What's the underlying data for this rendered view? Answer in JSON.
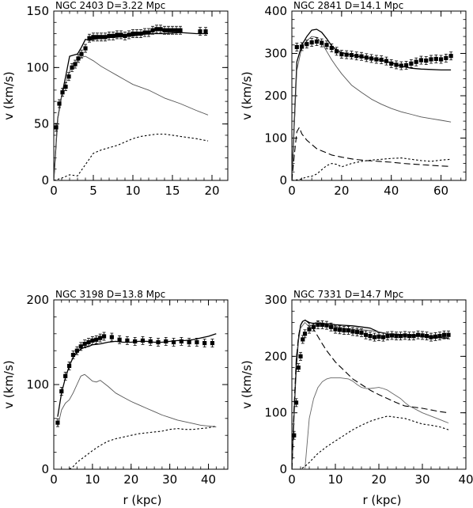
{
  "figure": {
    "x_axis_label": "r (kpc)",
    "y_axis_label": "v (km/s)"
  },
  "chart_data": [
    {
      "type": "line",
      "title": "NGC 2403   D=3.22 Mpc",
      "xlabel": "",
      "ylabel": "v (km/s)",
      "xlim": [
        0,
        22
      ],
      "ylim": [
        0,
        150
      ],
      "xticks": [
        0,
        5,
        10,
        15,
        20
      ],
      "yticks": [
        0,
        50,
        100,
        150
      ],
      "points": {
        "x": [
          0.3,
          0.7,
          1.1,
          1.5,
          1.9,
          2.3,
          2.7,
          3.1,
          3.5,
          4.0,
          4.5,
          5.0,
          5.5,
          6.0,
          6.5,
          7.0,
          7.5,
          8.0,
          8.5,
          9.0,
          9.5,
          10.0,
          10.5,
          11.0,
          11.5,
          12.0,
          12.5,
          13.0,
          13.5,
          14.0,
          14.5,
          15.0,
          15.5,
          16.0,
          18.5,
          19.2
        ],
        "y": [
          47,
          68,
          78,
          83,
          92,
          100,
          103,
          108,
          112,
          117,
          126,
          127,
          127,
          127,
          127,
          128,
          128,
          129,
          129,
          128,
          129,
          130,
          130,
          130,
          131,
          131,
          133,
          134,
          134,
          133,
          133,
          133,
          133,
          133,
          132,
          132
        ]
      },
      "series": [
        {
          "style": "solid",
          "x": [
            0,
            0.5,
            1,
            1.5,
            2,
            2.5,
            3,
            3.5,
            4,
            4.5,
            5,
            6,
            8,
            10,
            12,
            14,
            16,
            18,
            19.5
          ],
          "y": [
            0,
            55,
            75,
            92,
            110,
            111,
            112,
            118,
            125,
            124,
            125,
            126,
            127,
            128,
            130,
            130,
            131,
            130,
            130
          ]
        },
        {
          "style": "dotted",
          "x": [
            0,
            0.5,
            1,
            2,
            3,
            3.5,
            4,
            5,
            6,
            7,
            8,
            9,
            10,
            12,
            14,
            16,
            18,
            19.5
          ],
          "y": [
            0,
            55,
            75,
            97,
            106,
            109,
            110,
            106,
            101,
            97,
            93,
            89,
            85,
            80,
            73,
            68,
            62,
            58
          ]
        },
        {
          "style": "dashed",
          "x": [
            0,
            1,
            2,
            3,
            4,
            5,
            6,
            7,
            8,
            9,
            10,
            11,
            12,
            13,
            14,
            15,
            16,
            17,
            18,
            19.5
          ],
          "y": [
            0,
            2,
            5,
            4,
            14,
            24,
            27,
            29,
            31,
            34,
            37,
            39,
            40,
            41,
            41,
            40,
            39,
            38,
            37,
            35
          ]
        }
      ]
    },
    {
      "type": "line",
      "title": "NGC 2841   D=14.1 Mpc",
      "xlabel": "",
      "ylabel": "v (km/s)",
      "xlim": [
        0,
        70
      ],
      "ylim": [
        0,
        400
      ],
      "xticks": [
        0,
        20,
        40,
        60
      ],
      "yticks": [
        0,
        100,
        200,
        300,
        400
      ],
      "points": {
        "x": [
          2,
          4,
          6,
          8,
          10,
          12,
          14,
          16,
          18,
          20,
          22,
          24,
          26,
          28,
          30,
          32,
          34,
          36,
          38,
          40,
          42,
          44,
          46,
          48,
          50,
          52,
          54,
          56,
          58,
          60,
          62,
          64
        ],
        "y": [
          315,
          316,
          322,
          326,
          328,
          325,
          320,
          313,
          305,
          298,
          297,
          296,
          294,
          293,
          290,
          288,
          286,
          285,
          282,
          276,
          273,
          271,
          272,
          276,
          280,
          284,
          283,
          286,
          287,
          286,
          289,
          294
        ]
      },
      "series": [
        {
          "style": "solid",
          "x": [
            0,
            2,
            4,
            6,
            8,
            10,
            12,
            14,
            16,
            18,
            20,
            24,
            28,
            32,
            36,
            40,
            44,
            48,
            52,
            56,
            60,
            64
          ],
          "y": [
            0,
            280,
            320,
            340,
            355,
            357,
            350,
            335,
            318,
            308,
            302,
            296,
            292,
            288,
            284,
            278,
            270,
            265,
            263,
            262,
            261,
            261
          ]
        },
        {
          "style": "dotted",
          "x": [
            0,
            2,
            4,
            6,
            8,
            10,
            12,
            14,
            16,
            18,
            20,
            24,
            28,
            32,
            36,
            40,
            44,
            48,
            52,
            56,
            60,
            64
          ],
          "y": [
            0,
            260,
            315,
            330,
            340,
            338,
            325,
            305,
            285,
            268,
            252,
            225,
            208,
            192,
            180,
            170,
            162,
            156,
            150,
            146,
            142,
            138
          ]
        },
        {
          "style": "longdash",
          "x": [
            0,
            1,
            2,
            3,
            4,
            6,
            8,
            10,
            12,
            14,
            16,
            20,
            25,
            30,
            35,
            40,
            45,
            50,
            55,
            60,
            64
          ],
          "y": [
            0,
            60,
            115,
            125,
            110,
            95,
            85,
            75,
            70,
            65,
            60,
            55,
            50,
            47,
            45,
            43,
            40,
            38,
            36,
            34,
            33
          ]
        },
        {
          "style": "dashed",
          "x": [
            0,
            3,
            6,
            8,
            10,
            12,
            14,
            16,
            18,
            20,
            24,
            28,
            32,
            36,
            40,
            44,
            48,
            52,
            56,
            60,
            64
          ],
          "y": [
            0,
            2,
            8,
            10,
            15,
            25,
            35,
            40,
            38,
            32,
            40,
            45,
            48,
            50,
            52,
            53,
            50,
            47,
            45,
            48,
            50
          ]
        }
      ]
    },
    {
      "type": "line",
      "title": "NGC 3198   D=13.8 Mpc",
      "xlabel": "r (kpc)",
      "ylabel": "v (km/s)",
      "xlim": [
        0,
        45
      ],
      "ylim": [
        0,
        200
      ],
      "xticks": [
        0,
        10,
        20,
        30,
        40
      ],
      "yticks": [
        0,
        100,
        200
      ],
      "points": {
        "x": [
          1,
          2,
          3,
          4,
          5,
          6,
          7,
          8,
          9,
          10,
          11,
          12,
          13,
          15,
          17,
          19,
          21,
          23,
          25,
          27,
          29,
          31,
          33,
          35,
          37,
          39,
          41
        ],
        "y": [
          55,
          92,
          110,
          122,
          135,
          140,
          145,
          148,
          150,
          152,
          153,
          155,
          157,
          156,
          153,
          152,
          151,
          152,
          151,
          150,
          151,
          150,
          151,
          150,
          150,
          149,
          149
        ]
      },
      "series": [
        {
          "style": "solid",
          "x": [
            1,
            2,
            3,
            4,
            5,
            6,
            7,
            8,
            9,
            10,
            12,
            14,
            16,
            18,
            20,
            22,
            24,
            26,
            28,
            30,
            32,
            34,
            36,
            38,
            40,
            42
          ],
          "y": [
            62,
            90,
            108,
            122,
            132,
            138,
            142,
            144,
            145,
            147,
            148,
            150,
            151,
            150,
            150,
            151,
            151,
            150,
            150,
            151,
            152,
            152,
            153,
            155,
            157,
            160
          ]
        },
        {
          "style": "dotted",
          "x": [
            1,
            2,
            3,
            4,
            5,
            6,
            7,
            8,
            9,
            10,
            11,
            12,
            14,
            16,
            18,
            20,
            22,
            24,
            26,
            28,
            30,
            32,
            34,
            36,
            38,
            40,
            42
          ],
          "y": [
            50,
            70,
            78,
            82,
            90,
            100,
            110,
            112,
            108,
            104,
            103,
            105,
            98,
            90,
            85,
            80,
            76,
            72,
            68,
            64,
            61,
            58,
            56,
            54,
            52,
            51,
            50
          ]
        },
        {
          "style": "dashed",
          "x": [
            2,
            4,
            5,
            6,
            8,
            10,
            12,
            14,
            16,
            18,
            20,
            22,
            24,
            26,
            28,
            30,
            32,
            34,
            36,
            38,
            40,
            42
          ],
          "y": [
            0,
            0,
            3,
            8,
            15,
            22,
            28,
            33,
            36,
            38,
            40,
            42,
            43,
            44,
            45,
            47,
            48,
            47,
            47,
            48,
            49,
            51
          ]
        }
      ]
    },
    {
      "type": "line",
      "title": "NGC 7331   D=14.7 Mpc",
      "xlabel": "r (kpc)",
      "ylabel": "v (km/s)",
      "xlim": [
        0,
        40
      ],
      "ylim": [
        0,
        300
      ],
      "xticks": [
        0,
        10,
        20,
        30,
        40
      ],
      "yticks": [
        0,
        100,
        200,
        300
      ],
      "points": {
        "x": [
          0.5,
          1,
          1.5,
          2,
          2.5,
          3,
          4,
          5,
          6,
          7,
          8,
          9,
          10,
          11,
          12,
          13,
          14,
          15,
          16,
          17,
          18,
          19,
          20,
          21,
          22,
          23,
          24,
          25,
          26,
          27,
          28,
          29,
          30,
          31,
          32,
          33,
          34,
          35,
          36
        ],
        "y": [
          60,
          118,
          180,
          200,
          230,
          240,
          248,
          252,
          256,
          256,
          255,
          252,
          248,
          247,
          246,
          246,
          244,
          243,
          242,
          238,
          236,
          234,
          235,
          234,
          236,
          237,
          236,
          236,
          237,
          236,
          236,
          238,
          237,
          236,
          234,
          235,
          236,
          238,
          238
        ]
      },
      "series": [
        {
          "style": "solid",
          "x": [
            0,
            0.5,
            1,
            1.5,
            2,
            2.5,
            3,
            4,
            5,
            6,
            7,
            8,
            10,
            12,
            14,
            16,
            18,
            20,
            22,
            24,
            26,
            28,
            30,
            32,
            34,
            36
          ],
          "y": [
            0,
            100,
            180,
            230,
            255,
            262,
            264,
            260,
            258,
            258,
            258,
            258,
            256,
            255,
            254,
            252,
            250,
            243,
            240,
            238,
            238,
            236,
            236,
            234,
            233,
            232
          ]
        },
        {
          "style": "dotted",
          "x": [
            0,
            1,
            2,
            3,
            4,
            5,
            6,
            7,
            8,
            10,
            12,
            14,
            16,
            18,
            20,
            22,
            24,
            26,
            28,
            30,
            32,
            34,
            36
          ],
          "y": [
            0,
            200,
            250,
            260,
            252,
            258,
            262,
            258,
            255,
            253,
            250,
            248,
            247,
            246,
            243,
            240,
            240,
            238,
            238,
            236,
            236,
            235,
            233
          ]
        },
        {
          "style": "longdash",
          "x": [
            0,
            0.5,
            1,
            1.5,
            2,
            2.5,
            3,
            4,
            5,
            6,
            7,
            8,
            10,
            12,
            14,
            16,
            18,
            20,
            22,
            24,
            26,
            28,
            30,
            32,
            34,
            36
          ],
          "y": [
            0,
            110,
            190,
            235,
            255,
            263,
            265,
            258,
            248,
            235,
            222,
            210,
            190,
            175,
            160,
            150,
            140,
            132,
            125,
            118,
            112,
            110,
            108,
            105,
            102,
            100
          ]
        },
        {
          "style": "grayline",
          "x": [
            3,
            4,
            5,
            6,
            7,
            8,
            9,
            10,
            11,
            12,
            13,
            14,
            15,
            16,
            17,
            18,
            19,
            20,
            21,
            22,
            23,
            24,
            25,
            26,
            27,
            28,
            29,
            30,
            31,
            32,
            33,
            34,
            35,
            36
          ],
          "y": [
            0,
            90,
            125,
            145,
            155,
            160,
            162,
            162,
            162,
            161,
            160,
            156,
            150,
            145,
            143,
            143,
            144,
            145,
            143,
            140,
            135,
            130,
            125,
            118,
            112,
            108,
            104,
            100,
            97,
            94,
            91,
            88,
            85,
            82
          ]
        },
        {
          "style": "dashed",
          "x": [
            1.5,
            2,
            3,
            4,
            5,
            6,
            8,
            10,
            12,
            14,
            16,
            18,
            20,
            22,
            24,
            26,
            28,
            30,
            32,
            34,
            36
          ],
          "y": [
            0,
            0,
            5,
            12,
            20,
            28,
            40,
            50,
            60,
            70,
            78,
            85,
            90,
            94,
            92,
            90,
            85,
            80,
            78,
            75,
            70
          ]
        }
      ]
    }
  ]
}
